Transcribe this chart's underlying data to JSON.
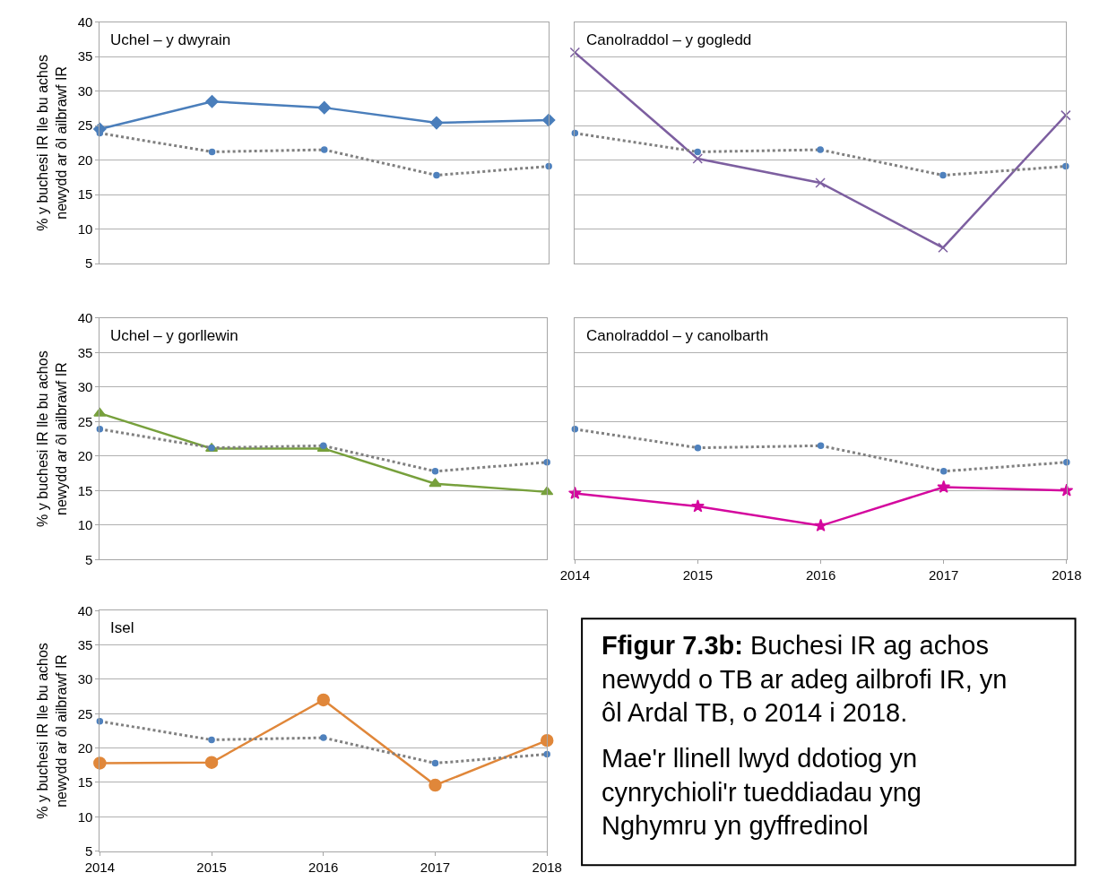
{
  "chart_data": [
    {
      "type": "line",
      "title": "Uchel – y dwyrain",
      "ylabel": "% y buchesi IR lle bu achos newydd ar ôl ailbrawf IR",
      "x": [
        2014,
        2015,
        2016,
        2017,
        2018
      ],
      "xlim": [
        2014,
        2018
      ],
      "xticks": [
        2014,
        2015,
        2016,
        2017,
        2018
      ],
      "ylim": [
        5,
        40
      ],
      "yticks": [
        5,
        10,
        15,
        20,
        25,
        30,
        35,
        40
      ],
      "grid": "y",
      "tick_labels": "y",
      "series": [
        {
          "color": "#4f81bd",
          "marker": "circle",
          "line_style": "dotted",
          "values": [
            23.9,
            21.2,
            21.5,
            17.8,
            19.1
          ]
        },
        {
          "color": "#4a7ebb",
          "marker": "diamond",
          "line_style": "solid",
          "values": [
            24.5,
            28.5,
            27.6,
            25.4,
            25.8
          ]
        }
      ]
    },
    {
      "type": "line",
      "title": "Canolraddol – y gogledd",
      "x": [
        2014,
        2015,
        2016,
        2017,
        2018
      ],
      "xlim": [
        2014,
        2018
      ],
      "xticks": [
        2014,
        2015,
        2016,
        2017,
        2018
      ],
      "ylim": [
        5,
        40
      ],
      "yticks": [
        5,
        10,
        15,
        20,
        25,
        30,
        35,
        40
      ],
      "grid": "y",
      "tick_labels": false,
      "series": [
        {
          "color": "#4f81bd",
          "marker": "circle",
          "line_style": "dotted",
          "values": [
            23.9,
            21.2,
            21.5,
            17.8,
            19.1
          ]
        },
        {
          "color": "#7d5fa0",
          "marker": "cross",
          "line_style": "solid",
          "values": [
            35.6,
            20.2,
            16.7,
            7.3,
            26.5
          ]
        }
      ]
    },
    {
      "type": "line",
      "title": "Uchel – y gorllewin",
      "ylabel": "% y buchesi IR lle bu achos newydd ar ôl ailbrawf IR",
      "x": [
        2014,
        2015,
        2016,
        2017,
        2018
      ],
      "xlim": [
        2014,
        2018
      ],
      "xticks": [
        2014,
        2015,
        2016,
        2017,
        2018
      ],
      "ylim": [
        5,
        40
      ],
      "yticks": [
        5,
        10,
        15,
        20,
        25,
        30,
        35,
        40
      ],
      "grid": "y",
      "tick_labels": "y",
      "series": [
        {
          "color": "#4f81bd",
          "marker": "circle",
          "line_style": "dotted",
          "values": [
            23.9,
            21.2,
            21.5,
            17.8,
            19.1
          ]
        },
        {
          "color": "#77a03c",
          "marker": "triangle",
          "line_style": "solid",
          "values": [
            26.2,
            21.1,
            21.1,
            16.0,
            14.8
          ]
        }
      ]
    },
    {
      "type": "line",
      "title": "Canolraddol – y canolbarth",
      "x": [
        2014,
        2015,
        2016,
        2017,
        2018
      ],
      "xlim": [
        2014,
        2018
      ],
      "xticks": [
        2014,
        2015,
        2016,
        2017,
        2018
      ],
      "ylim": [
        5,
        40
      ],
      "yticks": [
        5,
        10,
        15,
        20,
        25,
        30,
        35,
        40
      ],
      "grid": "y",
      "tick_labels": "x",
      "series": [
        {
          "color": "#4f81bd",
          "marker": "circle",
          "line_style": "dotted",
          "values": [
            23.9,
            21.2,
            21.5,
            17.8,
            19.1
          ]
        },
        {
          "color": "#d4089e",
          "marker": "star",
          "line_style": "solid",
          "values": [
            14.6,
            12.7,
            9.9,
            15.5,
            15.0
          ]
        }
      ]
    },
    {
      "type": "line",
      "title": "Isel",
      "ylabel": "% y buchesi IR lle bu achos newydd ar ôl ailbrawf IR",
      "x": [
        2014,
        2015,
        2016,
        2017,
        2018
      ],
      "xlim": [
        2014,
        2018
      ],
      "xticks": [
        2014,
        2015,
        2016,
        2017,
        2018
      ],
      "ylim": [
        5,
        40
      ],
      "yticks": [
        5,
        10,
        15,
        20,
        25,
        30,
        35,
        40
      ],
      "grid": "y",
      "series": [
        {
          "color": "#4f81bd",
          "marker": "circle",
          "line_style": "dotted",
          "values": [
            23.9,
            21.2,
            21.5,
            17.8,
            19.1
          ]
        },
        {
          "color": "#e0873a",
          "marker": "circle",
          "line_style": "solid",
          "values": [
            17.8,
            17.9,
            27.0,
            14.6,
            21.1
          ]
        }
      ]
    },
    {
      "type": "other",
      "title": "Ffigur 7.3b: Buchesi IR ag achos newydd o TB ar adeg ailbrofi IR, yn ôl Ardal TB, o 2014 i 2018.",
      "subtitle": "Mae'r llinell lwyd ddotiog yn cynrychioli'r tueddiadau yng Nghymru yn gyffredinol"
    }
  ]
}
